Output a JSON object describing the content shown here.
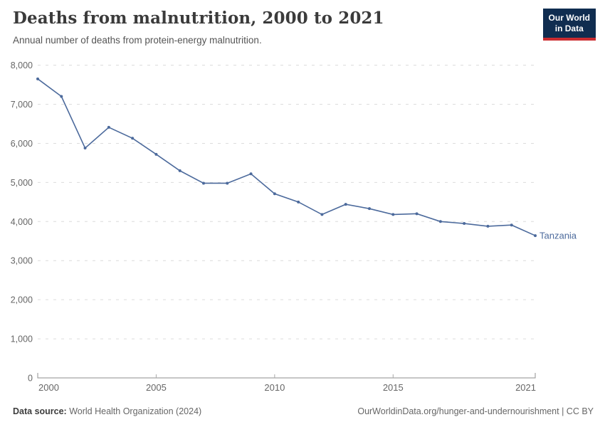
{
  "header": {
    "title": "Deaths from malnutrition, 2000 to 2021",
    "subtitle": "Annual number of deaths from protein-energy malnutrition."
  },
  "logo": {
    "line1": "Our World",
    "line2": "in Data",
    "bg_color": "#102d50",
    "accent_color": "#cb2c30"
  },
  "chart_data": {
    "type": "line",
    "title": "Deaths from malnutrition, 2000 to 2021",
    "xlabel": "",
    "ylabel": "",
    "xlim": [
      2000,
      2021
    ],
    "ylim": [
      0,
      8000
    ],
    "xticks": [
      2000,
      2005,
      2010,
      2015,
      2021
    ],
    "yticks": [
      0,
      1000,
      2000,
      3000,
      4000,
      5000,
      6000,
      7000,
      8000
    ],
    "grid": "horizontal-dashed",
    "legend_position": "end-of-line-label",
    "series": [
      {
        "name": "Tanzania",
        "color": "#4c6a9c",
        "x": [
          2000,
          2001,
          2002,
          2003,
          2004,
          2005,
          2006,
          2007,
          2008,
          2009,
          2010,
          2011,
          2012,
          2013,
          2014,
          2015,
          2016,
          2017,
          2018,
          2019,
          2020,
          2021
        ],
        "values": [
          7650,
          7200,
          5880,
          6410,
          6130,
          5720,
          5300,
          4980,
          4980,
          5220,
          4710,
          4500,
          4180,
          4440,
          4330,
          4180,
          4200,
          4000,
          3950,
          3880,
          3910,
          3640
        ]
      }
    ]
  },
  "footer": {
    "source_label": "Data source:",
    "source_text": " World Health Organization (2024)",
    "credit": "OurWorldinData.org/hunger-and-undernourishment | CC BY"
  }
}
